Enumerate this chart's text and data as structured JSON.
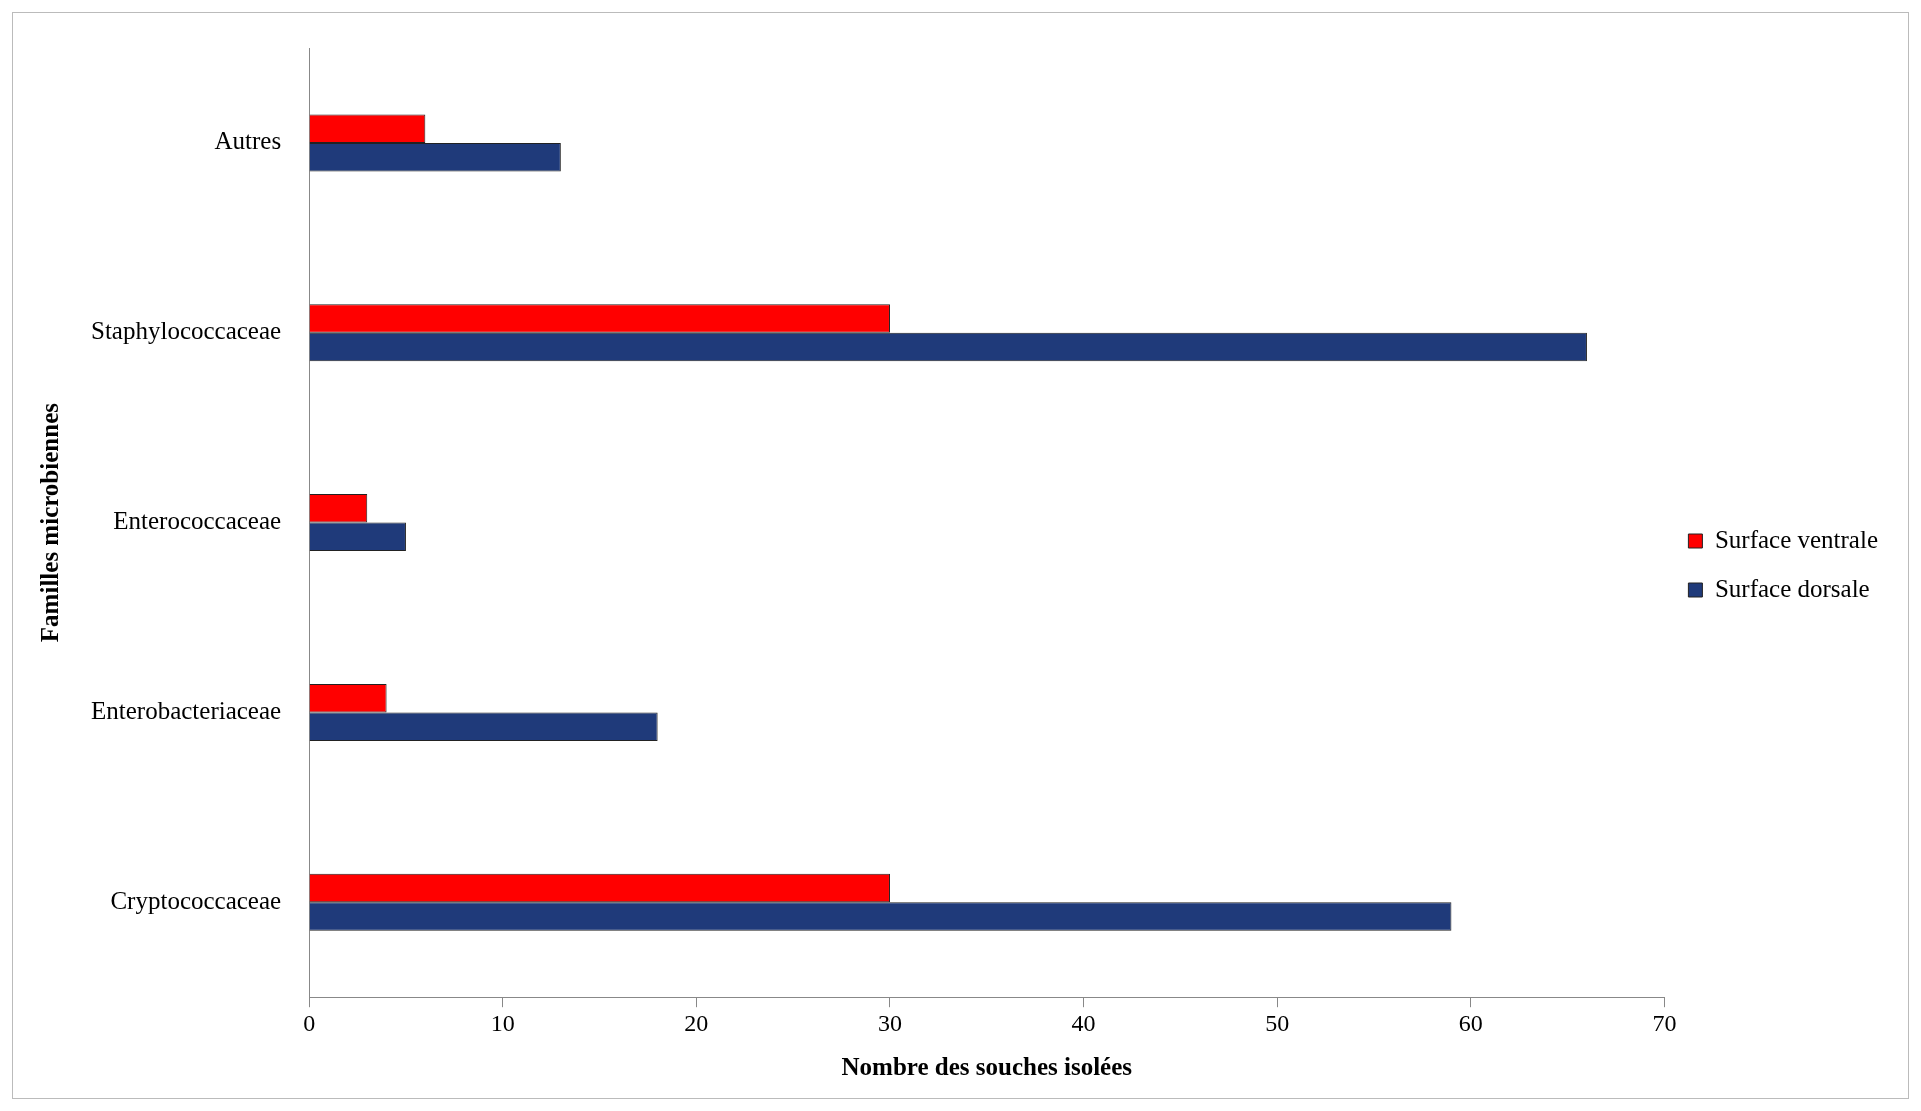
{
  "chart_data": {
    "type": "bar",
    "orientation": "horizontal",
    "xlabel": "Nombre des souches isolées",
    "ylabel": "Familles microbiennes",
    "categories": [
      "Autres",
      "Staphylococcaceae",
      "Enterococcaceae",
      "Enterobacteriaceae",
      "Cryptococcaceae"
    ],
    "series": [
      {
        "name": "Surface ventrale",
        "color": "#ff0000",
        "values": [
          6,
          30,
          3,
          4,
          30
        ]
      },
      {
        "name": "Surface dorsale",
        "color": "#1f3a7a",
        "values": [
          13,
          66,
          5,
          18,
          59
        ]
      }
    ],
    "xlim": [
      0,
      70
    ],
    "xticks": [
      0,
      10,
      20,
      30,
      40,
      50,
      60,
      70
    ],
    "grid": false,
    "legend": "right"
  }
}
